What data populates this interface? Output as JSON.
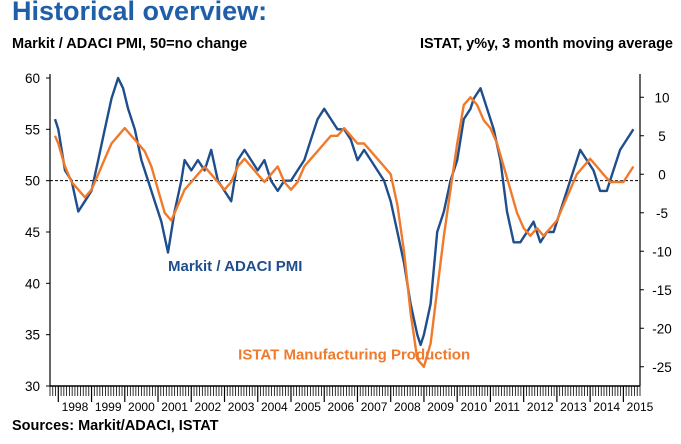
{
  "header": {
    "title": "Historical overview:",
    "left_subtitle": "Markit / ADACI PMI, 50=no change",
    "right_subtitle": "ISTAT, y%y, 3 month moving average"
  },
  "footer": {
    "source": "Sources: Markit/ADACI, ISTAT"
  },
  "colors": {
    "pmi": "#1f4e8c",
    "istat": "#f07a2c",
    "title": "#1f5fa8"
  },
  "chart_data": {
    "type": "line",
    "title": "Historical overview:",
    "left_axis": {
      "label": "Markit / ADACI PMI, 50=no change",
      "ylim": [
        30,
        60
      ],
      "ticks": [
        30,
        35,
        40,
        45,
        50,
        55,
        60
      ]
    },
    "right_axis": {
      "label": "ISTAT, y%y, 3 month moving average",
      "ylim": [
        -27.5,
        12.5
      ],
      "ticks": [
        -25,
        -20,
        -15,
        -10,
        -5,
        0,
        5,
        10
      ]
    },
    "x_axis": {
      "xlim": [
        1997.75,
        2015.5
      ],
      "tick_labels": [
        "1998",
        "1999",
        "2000",
        "2001",
        "2002",
        "2003",
        "2004",
        "2005",
        "2006",
        "2007",
        "2008",
        "2009",
        "2010",
        "2011",
        "2012",
        "2013",
        "2014",
        "2015"
      ]
    },
    "reference_line": {
      "axis": "left",
      "value": 50,
      "style": "dashed"
    },
    "series": [
      {
        "name": "Markit / ADACI PMI",
        "axis": "left",
        "label_position": "below-left",
        "x": [
          1997.9,
          1998.0,
          1998.2,
          1998.4,
          1998.6,
          1998.8,
          1999.0,
          1999.2,
          1999.4,
          1999.6,
          1999.8,
          1999.95,
          2000.1,
          2000.3,
          2000.5,
          2000.7,
          2000.9,
          2001.1,
          2001.3,
          2001.5,
          2001.7,
          2001.8,
          2002.0,
          2002.2,
          2002.4,
          2002.6,
          2002.8,
          2003.0,
          2003.2,
          2003.4,
          2003.6,
          2003.8,
          2004.0,
          2004.2,
          2004.4,
          2004.6,
          2004.8,
          2005.0,
          2005.2,
          2005.4,
          2005.6,
          2005.8,
          2006.0,
          2006.2,
          2006.4,
          2006.6,
          2006.8,
          2007.0,
          2007.2,
          2007.4,
          2007.6,
          2007.8,
          2008.0,
          2008.2,
          2008.4,
          2008.6,
          2008.8,
          2008.9,
          2009.0,
          2009.2,
          2009.4,
          2009.6,
          2009.8,
          2010.0,
          2010.2,
          2010.4,
          2010.5,
          2010.7,
          2010.9,
          2011.1,
          2011.3,
          2011.5,
          2011.7,
          2011.9,
          2012.1,
          2012.3,
          2012.5,
          2012.7,
          2012.9,
          2013.1,
          2013.3,
          2013.5,
          2013.7,
          2013.9,
          2014.1,
          2014.3,
          2014.5,
          2014.7,
          2014.9,
          2015.1,
          2015.3
        ],
        "values": [
          56,
          55,
          51,
          50,
          47,
          48,
          49,
          52,
          55,
          58,
          60,
          59,
          57,
          55,
          52,
          50,
          48,
          46,
          43,
          47,
          50,
          52,
          51,
          52,
          51,
          53,
          50,
          49,
          48,
          52,
          53,
          52,
          51,
          52,
          50,
          49,
          50,
          50,
          51,
          52,
          54,
          56,
          57,
          56,
          55,
          55,
          54,
          52,
          53,
          52,
          51,
          50,
          48,
          45,
          42,
          38,
          35,
          34,
          35,
          38,
          45,
          47,
          50,
          52,
          56,
          57,
          58,
          59,
          57,
          55,
          52,
          47,
          44,
          44,
          45,
          46,
          44,
          45,
          45,
          47,
          49,
          51,
          53,
          52,
          51,
          49,
          49,
          51,
          53,
          54,
          55
        ]
      },
      {
        "name": "ISTAT Manufacturing Production",
        "axis": "right",
        "label_position": "below-center",
        "x": [
          1997.9,
          1998.0,
          1998.2,
          1998.4,
          1998.6,
          1998.8,
          1999.0,
          1999.2,
          1999.4,
          1999.6,
          1999.8,
          2000.0,
          2000.2,
          2000.4,
          2000.6,
          2000.8,
          2001.0,
          2001.2,
          2001.4,
          2001.6,
          2001.8,
          2002.0,
          2002.2,
          2002.4,
          2002.6,
          2002.8,
          2003.0,
          2003.2,
          2003.4,
          2003.6,
          2003.8,
          2004.0,
          2004.2,
          2004.4,
          2004.6,
          2004.8,
          2005.0,
          2005.2,
          2005.4,
          2005.6,
          2005.8,
          2006.0,
          2006.2,
          2006.4,
          2006.6,
          2006.8,
          2007.0,
          2007.2,
          2007.4,
          2007.6,
          2007.8,
          2008.0,
          2008.2,
          2008.4,
          2008.6,
          2008.8,
          2009.0,
          2009.2,
          2009.4,
          2009.6,
          2009.8,
          2010.0,
          2010.2,
          2010.4,
          2010.6,
          2010.8,
          2011.0,
          2011.2,
          2011.4,
          2011.6,
          2011.8,
          2012.0,
          2012.2,
          2012.4,
          2012.6,
          2012.8,
          2013.0,
          2013.2,
          2013.4,
          2013.6,
          2013.8,
          2014.0,
          2014.2,
          2014.4,
          2014.6,
          2014.8,
          2015.0,
          2015.3
        ],
        "values": [
          5,
          4,
          1,
          -1,
          -2,
          -3,
          -2,
          0,
          2,
          4,
          5,
          6,
          5,
          4,
          3,
          1,
          -2,
          -5,
          -6,
          -4,
          -2,
          -1,
          0,
          1,
          0,
          -1,
          -2,
          -1,
          1,
          2,
          1,
          0,
          -1,
          0,
          1,
          -1,
          -2,
          -1,
          1,
          2,
          3,
          4,
          5,
          5,
          6,
          5,
          4,
          4,
          3,
          2,
          1,
          0,
          -4,
          -10,
          -18,
          -24,
          -25,
          -22,
          -15,
          -8,
          -2,
          4,
          9,
          10,
          9,
          7,
          6,
          4,
          1,
          -2,
          -5,
          -7,
          -8,
          -7,
          -8,
          -7,
          -6,
          -4,
          -2,
          0,
          1,
          2,
          1,
          0,
          -1,
          -1,
          -1,
          1
        ]
      }
    ]
  }
}
